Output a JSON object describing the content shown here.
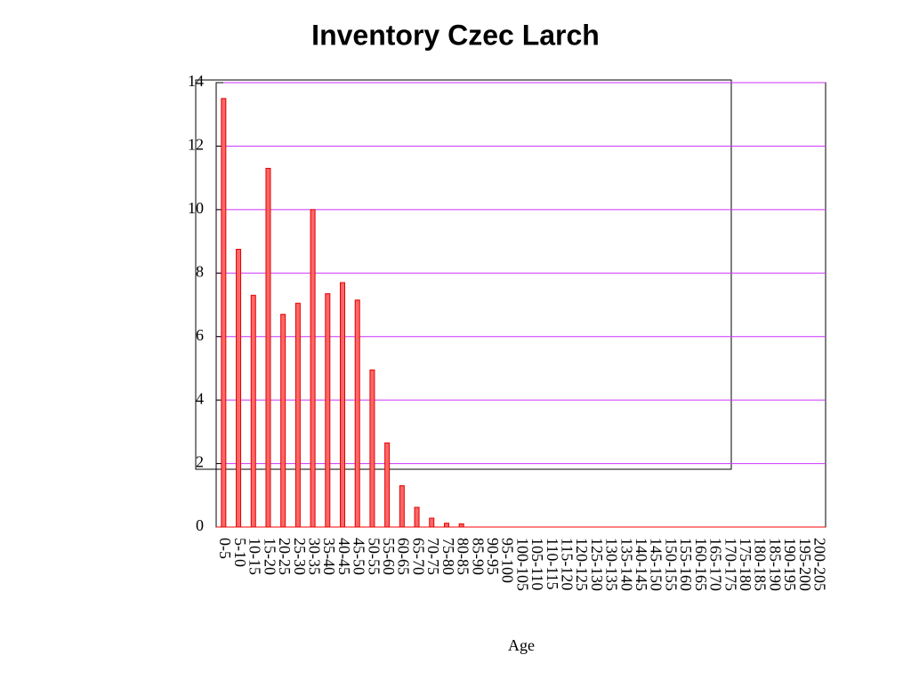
{
  "chart_data": {
    "type": "bar",
    "title": "Inventory Czec Larch",
    "x_label": "Age",
    "categories": [
      "0-5",
      "5-10",
      "10-15",
      "15-20",
      "20-25",
      "25-30",
      "30-35",
      "35-40",
      "40-45",
      "45-50",
      "50-55",
      "55-60",
      "60-65",
      "65-70",
      "70-75",
      "75-80",
      "80-85",
      "85-90",
      "90-95",
      "95-100",
      "100-105",
      "105-110",
      "110-115",
      "115-120",
      "120-125",
      "125-130",
      "130-135",
      "135-140",
      "140-145",
      "145-150",
      "150-155",
      "155-160",
      "160-165",
      "165-170",
      "170-175",
      "175-180",
      "180-185",
      "185-190",
      "190-195",
      "195-200",
      "200-205"
    ],
    "values": [
      13.5,
      8.75,
      7.3,
      11.3,
      6.7,
      7.05,
      10.0,
      7.35,
      7.7,
      7.15,
      4.95,
      2.65,
      1.3,
      0.62,
      0.28,
      0.12,
      0.1,
      0,
      0,
      0,
      0,
      0,
      0,
      0,
      0,
      0,
      0,
      0,
      0,
      0,
      0,
      0,
      0,
      0,
      0,
      0,
      0,
      0,
      0,
      0,
      0
    ],
    "color": "#ff6666",
    "ylim": [
      0,
      14
    ],
    "yticks": [
      0,
      2,
      4,
      6,
      8,
      10,
      12,
      14
    ],
    "grid": true,
    "grid_color": "#cc33ff"
  }
}
